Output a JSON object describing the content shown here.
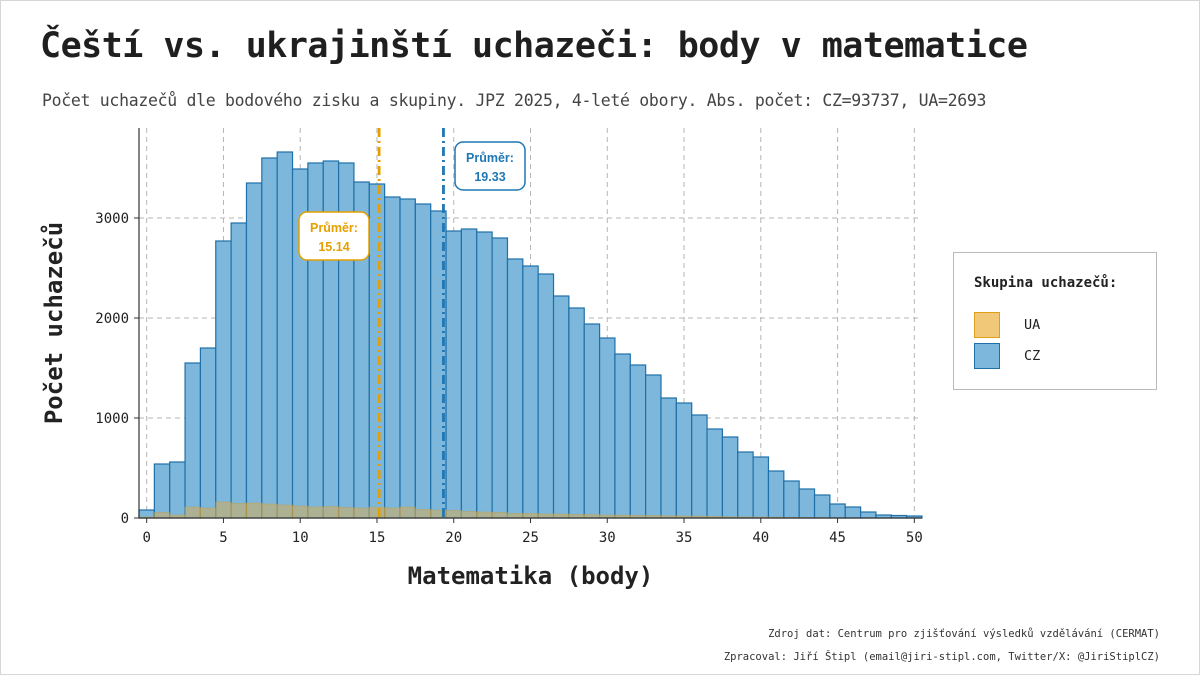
{
  "header": {
    "title": "Čeští vs. ukrajinští uchazeči: body v matematice",
    "subtitle": "Počet uchazečů dle bodového zisku a skupiny. JPZ 2025, 4-leté obory. Abs. počet: CZ=93737, UA=2693"
  },
  "legend": {
    "title": "Skupina uchazečů:",
    "items": [
      {
        "label": "UA",
        "fill": "#F0C878",
        "stroke": "#E09F1A"
      },
      {
        "label": "CZ",
        "fill": "#7DB8DC",
        "stroke": "#1F6FA8"
      }
    ]
  },
  "footer": {
    "source": "Zdroj dat: Centrum pro zjišťování výsledků vzdělávání (CERMAT)",
    "author": "Zpracoval: Jiří Štipl (email@jiri-stipl.com, Twitter/X: @JiriStiplCZ)"
  },
  "chart_data": {
    "type": "bar",
    "xlabel": "Matematika (body)",
    "ylabel": "Počet uchazečů",
    "xlim": [
      -0.5,
      50.5
    ],
    "ylim": [
      0,
      3900
    ],
    "xticks": [
      0,
      5,
      10,
      15,
      20,
      25,
      30,
      35,
      40,
      45,
      50
    ],
    "yticks": [
      0,
      1000,
      2000,
      3000
    ],
    "grid": true,
    "legend_position": "right",
    "x": [
      0,
      1,
      2,
      3,
      4,
      5,
      6,
      7,
      8,
      9,
      10,
      11,
      12,
      13,
      14,
      15,
      16,
      17,
      18,
      19,
      20,
      21,
      22,
      23,
      24,
      25,
      26,
      27,
      28,
      29,
      30,
      31,
      32,
      33,
      34,
      35,
      36,
      37,
      38,
      39,
      40,
      41,
      42,
      43,
      44,
      45,
      46,
      47,
      48,
      49,
      50
    ],
    "series": [
      {
        "name": "CZ",
        "color": "#1F77B4",
        "values": [
          80,
          540,
          560,
          1550,
          1700,
          2770,
          2950,
          3350,
          3600,
          3660,
          3490,
          3550,
          3570,
          3550,
          3360,
          3340,
          3210,
          3190,
          3140,
          3070,
          2870,
          2890,
          2860,
          2800,
          2590,
          2520,
          2440,
          2220,
          2100,
          1940,
          1800,
          1640,
          1530,
          1430,
          1200,
          1150,
          1030,
          890,
          810,
          660,
          610,
          470,
          370,
          290,
          230,
          140,
          110,
          60,
          30,
          25,
          20
        ]
      },
      {
        "name": "UA",
        "color": "#E69F00",
        "values": [
          10,
          55,
          30,
          110,
          100,
          160,
          145,
          150,
          140,
          130,
          120,
          110,
          115,
          105,
          100,
          110,
          100,
          110,
          85,
          80,
          75,
          65,
          60,
          55,
          45,
          45,
          40,
          40,
          35,
          35,
          30,
          28,
          25,
          25,
          22,
          20,
          18,
          15,
          12,
          10,
          10,
          8,
          6,
          5,
          4,
          3,
          2,
          2,
          1,
          1,
          1
        ]
      }
    ],
    "annotations": [
      {
        "label": "Průměr:",
        "value": "15.14",
        "x": 15.14,
        "series": "UA",
        "color": "#E69F00"
      },
      {
        "label": "Průměr:",
        "value": "19.33",
        "x": 19.33,
        "series": "CZ",
        "color": "#1F77B4"
      }
    ]
  }
}
